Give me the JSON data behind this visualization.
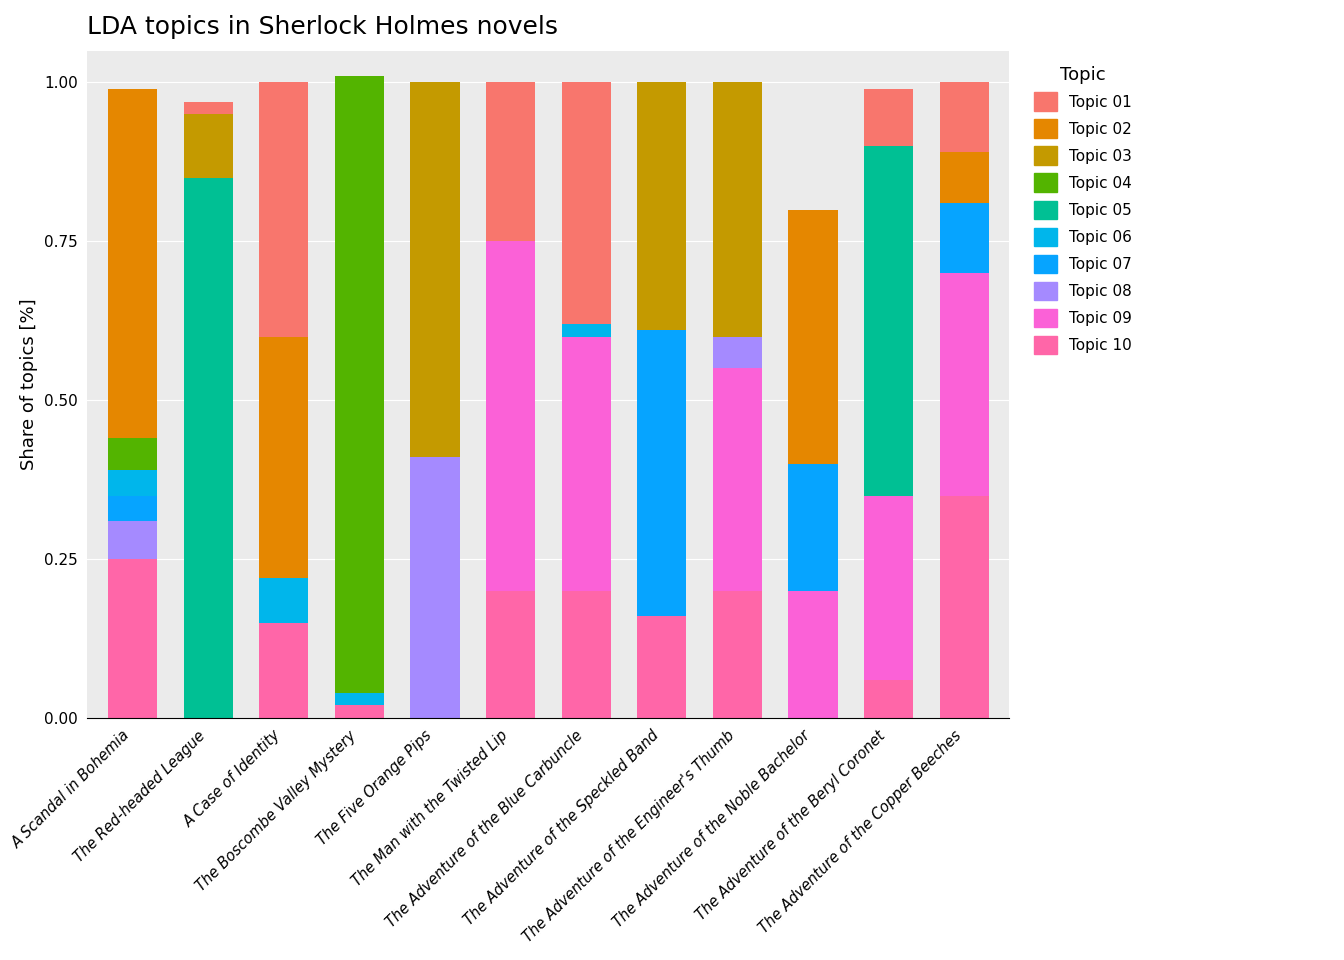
{
  "title": "LDA topics in Sherlock Holmes novels",
  "ylabel": "Share of topics [%]",
  "categories": [
    "A Scandal in Bohemia",
    "The Red-headed League",
    "A Case of Identity",
    "The Boscombe Valley Mystery",
    "The Five Orange Pips",
    "The Man with the Twisted Lip",
    "The Adventure of the Blue Carbuncle",
    "The Adventure of the Speckled Band",
    "The Adventure of the Engineer's Thumb",
    "The Adventure of the Noble Bachelor",
    "The Adventure of the Beryl Coronet",
    "The Adventure of the Copper Beeches"
  ],
  "topics": [
    "Topic 01",
    "Topic 02",
    "Topic 03",
    "Topic 04",
    "Topic 05",
    "Topic 06",
    "Topic 07",
    "Topic 08",
    "Topic 09",
    "Topic 10"
  ],
  "colors": {
    "Topic 01": "#F8766D",
    "Topic 02": "#E58700",
    "Topic 03": "#C49A00",
    "Topic 04": "#53B400",
    "Topic 05": "#00C094",
    "Topic 06": "#00B6EB",
    "Topic 07": "#06A4FF",
    "Topic 08": "#A58AFF",
    "Topic 09": "#FB61D7",
    "Topic 10": "#FF66A8"
  },
  "topic_order_bottom_to_top": [
    "Topic 10",
    "Topic 09",
    "Topic 08",
    "Topic 07",
    "Topic 06",
    "Topic 05",
    "Topic 04",
    "Topic 03",
    "Topic 02",
    "Topic 01"
  ],
  "bar_data": {
    "A Scandal in Bohemia": [
      0.25,
      0.0,
      0.06,
      0.04,
      0.04,
      0.0,
      0.05,
      0.0,
      0.55,
      0.0
    ],
    "The Red-headed League": [
      0.0,
      0.0,
      0.0,
      0.0,
      0.0,
      0.85,
      0.0,
      0.1,
      0.0,
      0.02
    ],
    "A Case of Identity": [
      0.15,
      0.0,
      0.0,
      0.0,
      0.07,
      0.0,
      0.0,
      0.0,
      0.38,
      0.4
    ],
    "The Boscombe Valley Mystery": [
      0.02,
      0.0,
      0.0,
      0.0,
      0.02,
      0.0,
      0.97,
      0.0,
      0.0,
      0.0
    ],
    "The Five Orange Pips": [
      0.0,
      0.0,
      0.41,
      0.0,
      0.0,
      0.0,
      0.0,
      0.59,
      0.0,
      0.0
    ],
    "The Man with the Twisted Lip": [
      0.2,
      0.55,
      0.0,
      0.0,
      0.0,
      0.0,
      0.0,
      0.0,
      0.0,
      0.25
    ],
    "The Adventure of the Blue Carbuncle": [
      0.2,
      0.4,
      0.0,
      0.0,
      0.02,
      0.0,
      0.0,
      0.0,
      0.0,
      0.38
    ],
    "The Adventure of the Speckled Band": [
      0.16,
      0.0,
      0.0,
      0.45,
      0.0,
      0.0,
      0.0,
      0.39,
      0.0,
      0.0
    ],
    "The Adventure of the Engineer's Thumb": [
      0.2,
      0.35,
      0.05,
      0.0,
      0.0,
      0.0,
      0.0,
      0.4,
      0.0,
      0.0
    ],
    "The Adventure of the Noble Bachelor": [
      0.0,
      0.2,
      0.0,
      0.2,
      0.0,
      0.0,
      0.0,
      0.0,
      0.4,
      0.0
    ],
    "The Adventure of the Beryl Coronet": [
      0.06,
      0.29,
      0.0,
      0.0,
      0.0,
      0.55,
      0.0,
      0.0,
      0.0,
      0.09
    ],
    "The Adventure of the Copper Beeches": [
      0.35,
      0.35,
      0.0,
      0.11,
      0.0,
      0.0,
      0.0,
      0.0,
      0.08,
      0.11
    ]
  },
  "bar_data_columns": [
    "Topic 10",
    "Topic 09",
    "Topic 08",
    "Topic 07",
    "Topic 06",
    "Topic 05",
    "Topic 04",
    "Topic 03",
    "Topic 02",
    "Topic 01"
  ]
}
